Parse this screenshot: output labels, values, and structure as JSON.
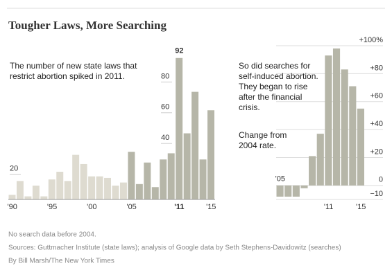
{
  "title": "Tougher Laws, More Searching",
  "chart_data": [
    {
      "type": "bar",
      "annotation": [
        "The number of new state laws that",
        "restrict abortion spiked in 2011."
      ],
      "categories": [
        "'90",
        null,
        null,
        null,
        null,
        "'95",
        null,
        null,
        null,
        null,
        "'00",
        null,
        null,
        null,
        null,
        "'05",
        null,
        null,
        null,
        null,
        null,
        "'11",
        null,
        null,
        null,
        "'15"
      ],
      "values": [
        3,
        12,
        2,
        9,
        2,
        13,
        18,
        12,
        29,
        23,
        15,
        15,
        14,
        9,
        11,
        31,
        10,
        24,
        8,
        26,
        30,
        92,
        43,
        70,
        26,
        58
      ],
      "colors": [
        "#dedbd0",
        "#dedbd0",
        "#dedbd0",
        "#dedbd0",
        "#dedbd0",
        "#dedbd0",
        "#dedbd0",
        "#dedbd0",
        "#dedbd0",
        "#dedbd0",
        "#dedbd0",
        "#dedbd0",
        "#dedbd0",
        "#dedbd0",
        "#dedbd0",
        "#b6b6a8",
        "#b6b6a8",
        "#b6b6a8",
        "#b6b6a8",
        "#b6b6a8",
        "#b6b6a8",
        "#b6b6a8",
        "#b6b6a8",
        "#b6b6a8",
        "#b6b6a8",
        "#b6b6a8"
      ],
      "ylim": [
        0,
        100
      ],
      "yticks": [
        20,
        40,
        60,
        80
      ]
    },
    {
      "type": "bar",
      "annotation": [
        "So did searches for",
        "self-induced abortion.",
        "They began to rise",
        "after the financial",
        "crisis."
      ],
      "annotation2": [
        "Change from",
        "2004 rate."
      ],
      "categories": [
        "'05",
        null,
        null,
        null,
        null,
        null,
        "'11",
        null,
        null,
        null,
        "'15"
      ],
      "values": [
        -8,
        -8,
        -8,
        -2,
        21,
        37,
        93,
        98,
        83,
        71,
        55
      ],
      "color": "#b6b6a8",
      "ylim": [
        -10,
        100
      ],
      "yticks": [
        {
          "value": -10,
          "label": "−10"
        },
        0,
        {
          "value": 20,
          "label": "+20"
        },
        {
          "value": 40,
          "label": "+40"
        },
        {
          "value": 60,
          "label": "+60"
        },
        {
          "value": 80,
          "label": "+80"
        },
        {
          "value": 100,
          "label": "+100%"
        }
      ]
    }
  ],
  "notes": [
    "No search data before 2004.",
    "Sources: Guttmacher Institute (state laws); analysis of Google data by Seth Stephens-Davidowitz (searches)",
    "By Bill Marsh/The New York Times"
  ]
}
